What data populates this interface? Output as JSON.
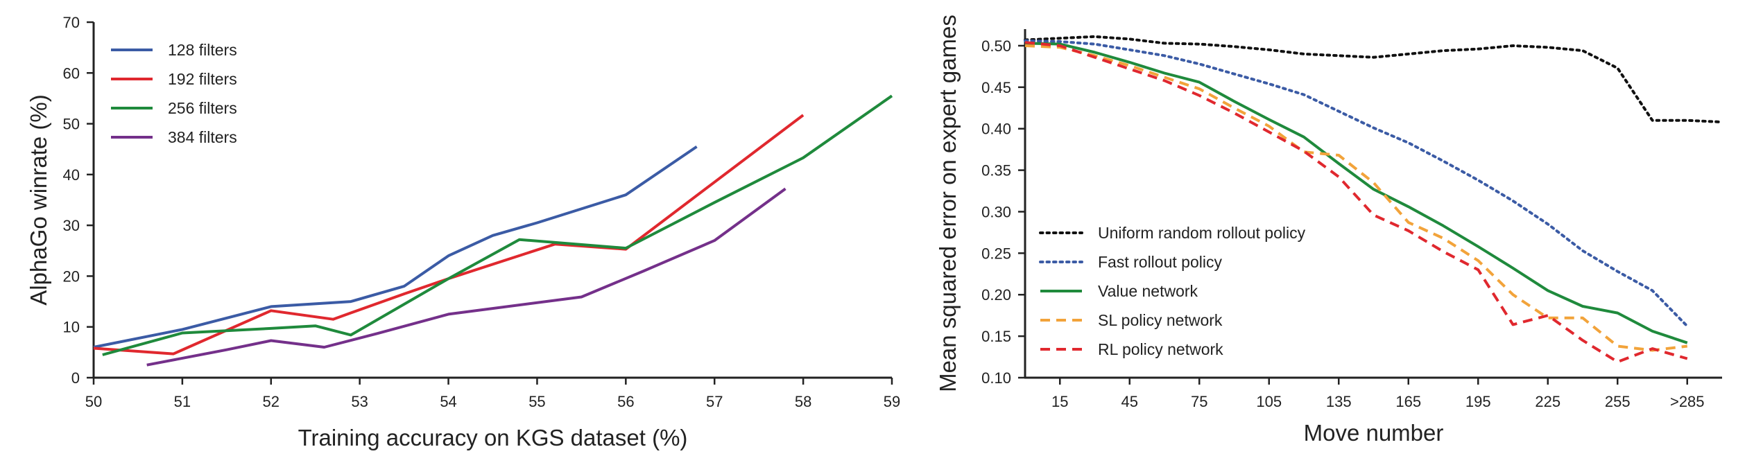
{
  "chart_data": [
    {
      "type": "line",
      "xlabel": "Training accuracy on KGS dataset (%)",
      "ylabel": "AlphaGo winrate (%)",
      "xlim": [
        50,
        59
      ],
      "ylim": [
        0,
        70
      ],
      "xticks": [
        "50",
        "51",
        "52",
        "53",
        "54",
        "55",
        "56",
        "57",
        "58",
        "59"
      ],
      "yticks": [
        "0",
        "10",
        "20",
        "30",
        "40",
        "50",
        "60",
        "70"
      ],
      "grid": false,
      "legend_position": "top-left",
      "series": [
        {
          "name": "128 filters",
          "color": "#3b5ba5",
          "dash": "solid",
          "points": [
            [
              50.0,
              6.0
            ],
            [
              51.0,
              9.5
            ],
            [
              52.0,
              14.0
            ],
            [
              52.9,
              15.0
            ],
            [
              53.5,
              18.0
            ],
            [
              54.0,
              24.0
            ],
            [
              54.5,
              28.0
            ],
            [
              55.0,
              30.5
            ],
            [
              56.0,
              36.0
            ],
            [
              56.8,
              45.5
            ]
          ]
        },
        {
          "name": "192 filters",
          "color": "#e0282e",
          "dash": "solid",
          "points": [
            [
              50.0,
              5.8
            ],
            [
              50.9,
              4.7
            ],
            [
              52.0,
              13.2
            ],
            [
              52.7,
              11.5
            ],
            [
              53.5,
              16.5
            ],
            [
              54.0,
              19.5
            ],
            [
              55.2,
              26.3
            ],
            [
              56.0,
              25.3
            ],
            [
              57.0,
              38.5
            ],
            [
              58.0,
              51.7
            ]
          ]
        },
        {
          "name": "256 filters",
          "color": "#1f8a3c",
          "dash": "solid",
          "points": [
            [
              50.1,
              4.5
            ],
            [
              51.0,
              8.8
            ],
            [
              52.0,
              9.7
            ],
            [
              52.5,
              10.2
            ],
            [
              52.9,
              8.4
            ],
            [
              54.0,
              19.5
            ],
            [
              54.8,
              27.2
            ],
            [
              56.0,
              25.5
            ],
            [
              57.0,
              34.5
            ],
            [
              58.0,
              43.3
            ],
            [
              59.0,
              55.5
            ]
          ]
        },
        {
          "name": "384 filters",
          "color": "#74308a",
          "dash": "solid",
          "points": [
            [
              50.6,
              2.5
            ],
            [
              51.5,
              5.5
            ],
            [
              52.0,
              7.3
            ],
            [
              52.6,
              6.0
            ],
            [
              53.2,
              8.7
            ],
            [
              54.0,
              12.5
            ],
            [
              55.5,
              15.9
            ],
            [
              56.2,
              21.0
            ],
            [
              57.0,
              27.0
            ],
            [
              57.8,
              37.2
            ]
          ]
        }
      ]
    },
    {
      "type": "line",
      "xlabel": "Move number",
      "ylabel": "Mean squared error on expert games",
      "xlim": [
        0,
        300
      ],
      "ylim": [
        0.1,
        0.52
      ],
      "xticks": [
        "15",
        "45",
        "75",
        "105",
        "135",
        "165",
        "195",
        "225",
        "255",
        ">285"
      ],
      "yticks": [
        "0.10",
        "0.15",
        "0.20",
        "0.25",
        "0.30",
        "0.35",
        "0.40",
        "0.45",
        "0.50"
      ],
      "grid": false,
      "legend_position": "bottom-left",
      "series": [
        {
          "name": "Uniform random rollout policy",
          "color": "#111111",
          "dash": "dotted",
          "points": [
            [
              0,
              0.507
            ],
            [
              15,
              0.509
            ],
            [
              30,
              0.511
            ],
            [
              45,
              0.508
            ],
            [
              60,
              0.503
            ],
            [
              75,
              0.502
            ],
            [
              90,
              0.499
            ],
            [
              105,
              0.495
            ],
            [
              120,
              0.49
            ],
            [
              135,
              0.488
            ],
            [
              150,
              0.486
            ],
            [
              165,
              0.49
            ],
            [
              180,
              0.494
            ],
            [
              195,
              0.496
            ],
            [
              210,
              0.5
            ],
            [
              225,
              0.498
            ],
            [
              240,
              0.494
            ],
            [
              255,
              0.473
            ],
            [
              270,
              0.41
            ],
            [
              285,
              0.41
            ],
            [
              300,
              0.408
            ]
          ]
        },
        {
          "name": "Fast rollout policy",
          "color": "#3b5ba5",
          "dash": "dotted",
          "points": [
            [
              0,
              0.506
            ],
            [
              15,
              0.505
            ],
            [
              30,
              0.502
            ],
            [
              45,
              0.495
            ],
            [
              60,
              0.488
            ],
            [
              75,
              0.478
            ],
            [
              90,
              0.466
            ],
            [
              105,
              0.454
            ],
            [
              120,
              0.441
            ],
            [
              135,
              0.421
            ],
            [
              150,
              0.401
            ],
            [
              165,
              0.383
            ],
            [
              180,
              0.361
            ],
            [
              195,
              0.338
            ],
            [
              210,
              0.313
            ],
            [
              225,
              0.285
            ],
            [
              240,
              0.253
            ],
            [
              255,
              0.228
            ],
            [
              270,
              0.205
            ],
            [
              285,
              0.162
            ]
          ]
        },
        {
          "name": "Value network",
          "color": "#1f8a3c",
          "dash": "solid",
          "points": [
            [
              0,
              0.503
            ],
            [
              15,
              0.502
            ],
            [
              30,
              0.492
            ],
            [
              45,
              0.48
            ],
            [
              60,
              0.467
            ],
            [
              75,
              0.456
            ],
            [
              90,
              0.433
            ],
            [
              105,
              0.411
            ],
            [
              120,
              0.39
            ],
            [
              135,
              0.358
            ],
            [
              150,
              0.327
            ],
            [
              165,
              0.306
            ],
            [
              180,
              0.283
            ],
            [
              195,
              0.258
            ],
            [
              210,
              0.232
            ],
            [
              225,
              0.205
            ],
            [
              240,
              0.186
            ],
            [
              255,
              0.178
            ],
            [
              270,
              0.156
            ],
            [
              285,
              0.142
            ]
          ]
        },
        {
          "name": "SL policy network",
          "color": "#f2a33a",
          "dash": "dashed",
          "points": [
            [
              0,
              0.5
            ],
            [
              15,
              0.498
            ],
            [
              30,
              0.488
            ],
            [
              45,
              0.476
            ],
            [
              60,
              0.462
            ],
            [
              75,
              0.448
            ],
            [
              90,
              0.425
            ],
            [
              105,
              0.403
            ],
            [
              120,
              0.372
            ],
            [
              135,
              0.368
            ],
            [
              150,
              0.335
            ],
            [
              165,
              0.287
            ],
            [
              180,
              0.268
            ],
            [
              195,
              0.241
            ],
            [
              210,
              0.2
            ],
            [
              225,
              0.172
            ],
            [
              240,
              0.172
            ],
            [
              255,
              0.138
            ],
            [
              270,
              0.133
            ],
            [
              285,
              0.138
            ]
          ]
        },
        {
          "name": "RL policy network",
          "color": "#e0282e",
          "dash": "dashed",
          "points": [
            [
              0,
              0.504
            ],
            [
              15,
              0.5
            ],
            [
              30,
              0.486
            ],
            [
              45,
              0.472
            ],
            [
              60,
              0.458
            ],
            [
              75,
              0.44
            ],
            [
              90,
              0.419
            ],
            [
              105,
              0.396
            ],
            [
              120,
              0.373
            ],
            [
              135,
              0.342
            ],
            [
              150,
              0.296
            ],
            [
              165,
              0.277
            ],
            [
              180,
              0.252
            ],
            [
              195,
              0.23
            ],
            [
              210,
              0.164
            ],
            [
              225,
              0.175
            ],
            [
              240,
              0.145
            ],
            [
              255,
              0.119
            ],
            [
              270,
              0.135
            ],
            [
              285,
              0.123
            ]
          ]
        }
      ]
    }
  ]
}
